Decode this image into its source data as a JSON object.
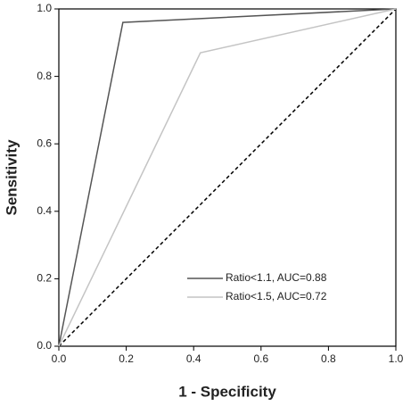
{
  "chart_data": {
    "type": "line",
    "x_label": "1 - Specificity",
    "y_label": "Sensitivity",
    "series": [
      {
        "name": "Ratio<1.1, AUC=0.88",
        "color": "#555555",
        "x": [
          0,
          0.19,
          1
        ],
        "values": [
          0,
          0.96,
          1
        ]
      },
      {
        "name": "Ratio<1.5, AUC=0.72",
        "color": "#c4c4c4",
        "x": [
          0,
          0.42,
          1
        ],
        "values": [
          0,
          0.87,
          1
        ]
      }
    ],
    "reference_line": {
      "x": [
        0,
        1
      ],
      "values": [
        0,
        1
      ],
      "color": "#000000",
      "dashed": true
    },
    "xlim": [
      0,
      1
    ],
    "ylim": [
      0,
      1
    ],
    "xticks": [
      {
        "value": 0,
        "label": "0.0"
      },
      0.2,
      0.4,
      0.6,
      0.8,
      {
        "value": 1,
        "label": "1.0"
      }
    ],
    "yticks": [
      {
        "value": 0,
        "label": "0.0"
      },
      0.2,
      0.4,
      0.6,
      0.8,
      {
        "value": 1,
        "label": "1.0"
      }
    ],
    "legend": "lower right",
    "grid": false
  }
}
